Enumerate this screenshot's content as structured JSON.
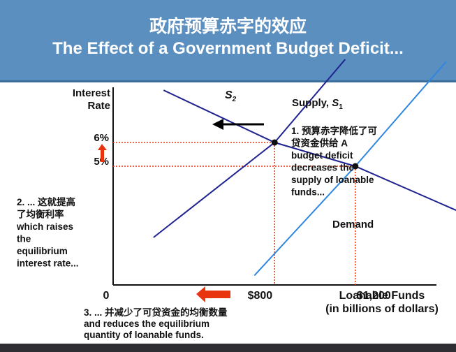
{
  "header": {
    "title_zh": "政府预算赤字的效应",
    "title_en": "The Effect of a Government Budget Deficit..."
  },
  "chart_data": {
    "type": "line",
    "ylabel": [
      "Interest",
      "Rate"
    ],
    "xlabel": [
      "Loanable Funds",
      "(in billions of dollars)"
    ],
    "origin_label": "0",
    "x_ticks": [
      {
        "value": 800,
        "label": "$800"
      },
      {
        "value": 1200,
        "label": "$1,200"
      }
    ],
    "y_ticks": [
      {
        "value": 5,
        "label": "5%"
      },
      {
        "value": 6,
        "label": "6%"
      }
    ],
    "series": [
      {
        "name": "Demand",
        "color": "#1f2390",
        "points": [
          [
            250,
            8.2
          ],
          [
            800,
            6
          ],
          [
            1200,
            5
          ],
          [
            1900,
            2.4
          ]
        ]
      },
      {
        "name": "Supply, S1",
        "color": "#2f86e0",
        "points": [
          [
            700,
            0.4
          ],
          [
            1200,
            5
          ],
          [
            1650,
            9.4
          ]
        ]
      },
      {
        "name": "S2",
        "color": "#1f2390",
        "points": [
          [
            200,
            2
          ],
          [
            800,
            6
          ],
          [
            1150,
            9.5
          ]
        ]
      }
    ],
    "equilibria": [
      {
        "x": 800,
        "y": 6
      },
      {
        "x": 1200,
        "y": 5
      }
    ],
    "guide_color": "#e8350f",
    "labels": {
      "s2_letter": "S",
      "s2_sub": "2",
      "supply_text": "Supply, ",
      "supply_letter": "S",
      "supply_sub": "1",
      "demand": "Demand"
    },
    "annotations": {
      "note1": [
        "1. 预算赤字降低了可",
        "贷资金供给  A",
        "budget deficit",
        "decreases the",
        "supply of loanable",
        "funds..."
      ],
      "note2": [
        "2. ... 这就提高",
        "了均衡利率",
        "which raises",
        "the",
        "equilibrium",
        "interest rate..."
      ],
      "note3": [
        "3. ... 并减少了可贷资金的均衡数量",
        "and reduces the equilibrium",
        "quantity of loanable funds."
      ]
    }
  }
}
